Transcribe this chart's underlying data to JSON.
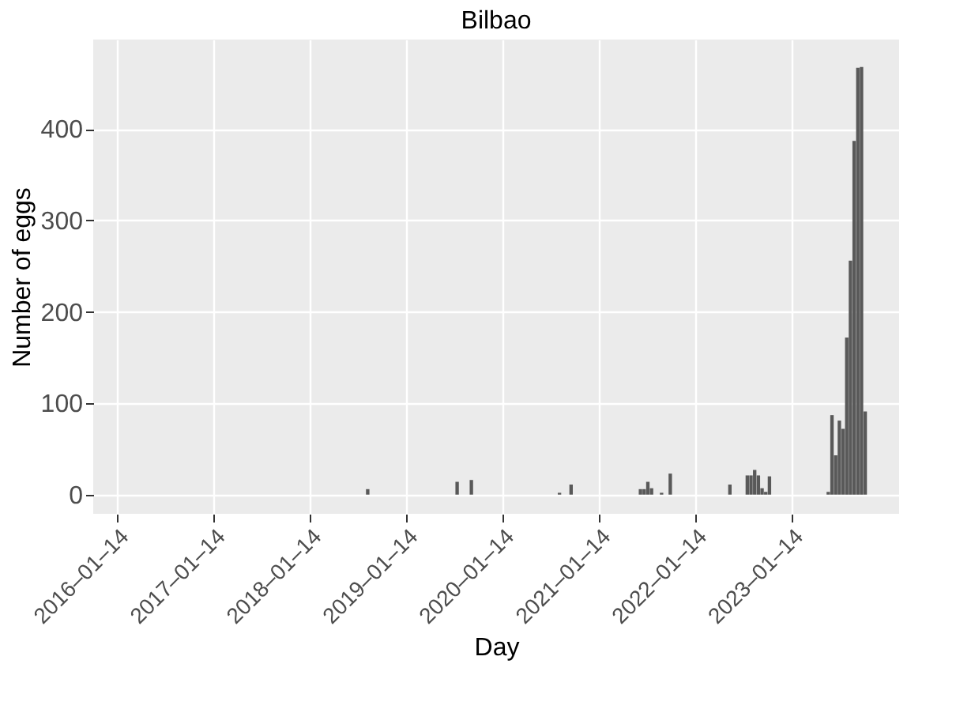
{
  "chart_data": {
    "type": "bar",
    "title": "Bilbao",
    "xlabel": "Day",
    "ylabel": "Number of eggs",
    "x": [
      "2018-08-16",
      "2019-07-21",
      "2019-09-13",
      "2020-08-12",
      "2020-09-25",
      "2021-06-15",
      "2021-06-29",
      "2021-07-13",
      "2021-07-27",
      "2021-09-03",
      "2021-10-06",
      "2022-05-20",
      "2022-07-25",
      "2022-08-08",
      "2022-08-22",
      "2022-09-05",
      "2022-09-19",
      "2022-10-03",
      "2022-10-17",
      "2023-05-28",
      "2023-06-11",
      "2023-06-25",
      "2023-07-09",
      "2023-07-23",
      "2023-08-06",
      "2023-08-20",
      "2023-09-03",
      "2023-09-17",
      "2023-10-01",
      "2023-10-15"
    ],
    "values": [
      6,
      14,
      16,
      2,
      11,
      6,
      6,
      14,
      7,
      2,
      23,
      11,
      21,
      21,
      27,
      21,
      7,
      3,
      20,
      3,
      87,
      43,
      81,
      72,
      172,
      256,
      387,
      467,
      468,
      91
    ],
    "color": "#595959",
    "xlim": [
      "2015-10-17",
      "2024-02-27"
    ],
    "xticks": [
      {
        "value": "2016-01-14",
        "label": "2016–01–14"
      },
      {
        "value": "2017-01-14",
        "label": "2017–01–14"
      },
      {
        "value": "2018-01-14",
        "label": "2018–01–14"
      },
      {
        "value": "2019-01-14",
        "label": "2019–01–14"
      },
      {
        "value": "2020-01-14",
        "label": "2020–01–14"
      },
      {
        "value": "2021-01-14",
        "label": "2021–01–14"
      },
      {
        "value": "2022-01-14",
        "label": "2022–01–14"
      },
      {
        "value": "2023-01-14",
        "label": "2023–01–14"
      }
    ],
    "ylim": [
      -21,
      498
    ],
    "yticks": [
      0,
      100,
      200,
      300,
      400
    ],
    "grid": true
  }
}
